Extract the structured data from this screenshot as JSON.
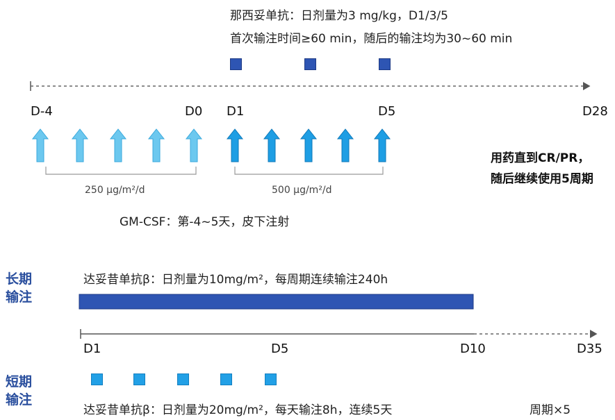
{
  "top": {
    "line1": "那西妥单抗：日剂量为3 mg/kg，D1/3/5",
    "line2": "首次输注时间≥60 min，随后的输注均为30~60 min"
  },
  "timeline1": {
    "labels": [
      "D-4",
      "D0",
      "D1",
      "D5",
      "D28"
    ]
  },
  "gmcsf": {
    "dose1": "250 μg/m²/d",
    "dose2": "500 μg/m²/d",
    "caption": "GM-CSF：第-4~5天，皮下注射",
    "arrow_color_light": "#6cc8ef",
    "arrow_color_dark": "#1e9ee4"
  },
  "note": {
    "line1": "用药直到CR/PR，",
    "line2": "随后继续使用5周期"
  },
  "long_infusion": {
    "side_line1": "长期",
    "side_line2": "输注",
    "caption": "达妥昔单抗β：日剂量为10mg/m²，每周期连续输注240h",
    "bar_color": "#2e55b3"
  },
  "timeline2": {
    "labels": [
      "D1",
      "D5",
      "D10",
      "D35"
    ]
  },
  "short_infusion": {
    "side_line1": "短期",
    "side_line2": "输注",
    "caption": "达妥昔单抗β：日剂量为20mg/m²，每天输注8h，连续5天",
    "cycle": "周期×5"
  }
}
